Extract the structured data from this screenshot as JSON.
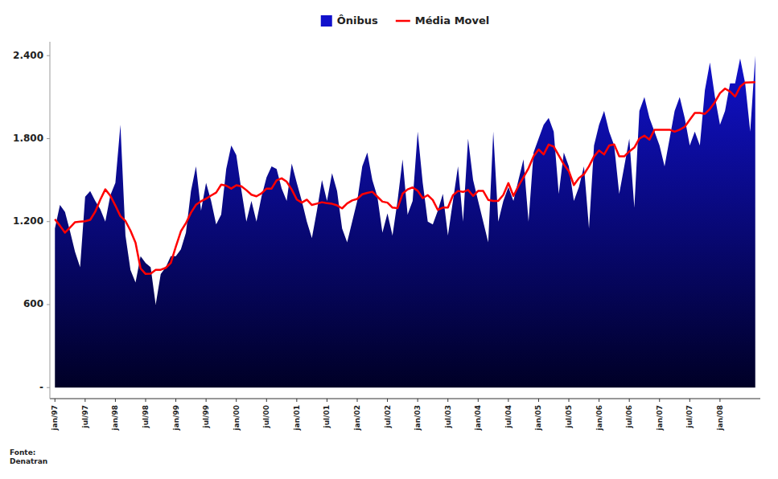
{
  "chart_data": {
    "type": "area",
    "categories": [
      "jan/97",
      null,
      null,
      null,
      null,
      null,
      "jul/97",
      null,
      null,
      null,
      null,
      null,
      "jan/98",
      null,
      null,
      null,
      null,
      null,
      "jul/98",
      null,
      null,
      null,
      null,
      null,
      "jan/99",
      null,
      null,
      null,
      null,
      null,
      "jul/99",
      null,
      null,
      null,
      null,
      null,
      "jan/00",
      null,
      null,
      null,
      null,
      null,
      "jul/00",
      null,
      null,
      null,
      null,
      null,
      "jan/01",
      null,
      null,
      null,
      null,
      null,
      "jul/01",
      null,
      null,
      null,
      null,
      null,
      "jan/02",
      null,
      null,
      null,
      null,
      null,
      "jul/02",
      null,
      null,
      null,
      null,
      null,
      "jan/03",
      null,
      null,
      null,
      null,
      null,
      "jul/03",
      null,
      null,
      null,
      null,
      null,
      "jan/04",
      null,
      null,
      null,
      null,
      null,
      "jul/04",
      null,
      null,
      null,
      null,
      null,
      "jan/05",
      null,
      null,
      null,
      null,
      null,
      "jul/05",
      null,
      null,
      null,
      null,
      null,
      "jan/06",
      null,
      null,
      null,
      null,
      null,
      "jul/06",
      null,
      null,
      null,
      null,
      null,
      "jan/07",
      null,
      null,
      null,
      null,
      null,
      "jul/07",
      null,
      null,
      null,
      null,
      null,
      "jan/08",
      null,
      null,
      null,
      null,
      null,
      null,
      null
    ],
    "series": [
      {
        "name": "Ônibus",
        "type": "area",
        "color": "#1111cc",
        "values": [
          1150,
          1320,
          1270,
          1130,
          980,
          870,
          1380,
          1420,
          1350,
          1290,
          1200,
          1390,
          1480,
          1900,
          1100,
          850,
          760,
          950,
          900,
          870,
          600,
          820,
          870,
          950,
          950,
          1000,
          1120,
          1420,
          1600,
          1280,
          1480,
          1350,
          1180,
          1250,
          1580,
          1750,
          1680,
          1430,
          1200,
          1350,
          1200,
          1380,
          1520,
          1600,
          1580,
          1440,
          1350,
          1620,
          1480,
          1350,
          1200,
          1080,
          1280,
          1500,
          1350,
          1550,
          1420,
          1150,
          1050,
          1200,
          1350,
          1600,
          1700,
          1500,
          1380,
          1120,
          1260,
          1100,
          1350,
          1650,
          1250,
          1350,
          1850,
          1480,
          1200,
          1180,
          1280,
          1400,
          1100,
          1350,
          1600,
          1200,
          1800,
          1500,
          1350,
          1200,
          1050,
          1850,
          1200,
          1350,
          1450,
          1350,
          1500,
          1650,
          1200,
          1700,
          1800,
          1900,
          1950,
          1850,
          1400,
          1700,
          1600,
          1350,
          1450,
          1600,
          1150,
          1750,
          1900,
          2000,
          1850,
          1750,
          1400,
          1600,
          1800,
          1300,
          2000,
          2100,
          1950,
          1850,
          1750,
          1600,
          1800,
          2000,
          2100,
          1950,
          1750,
          1850,
          1750,
          2150,
          2350,
          2100,
          1900,
          2000,
          2200,
          2200,
          2380,
          2200,
          1850,
          2400
        ]
      },
      {
        "name": "Média Movel",
        "type": "line",
        "color": "#ff0000",
        "values": [
          1217.5,
          1170,
          1120,
          1157.142857,
          1195.714286,
          1200,
          1202.857143,
          1212.857143,
          1271.428571,
          1358.571429,
          1432.857143,
          1387.142857,
          1315.714286,
          1240,
          1204.285714,
          1134.285714,
          1047.142857,
          861.428571,
          821.428571,
          824.285714,
          851.428571,
          851.428571,
          865.714286,
          901.428571,
          1018.571429,
          1130,
          1188.571429,
          1264.285714,
          1321.428571,
          1347.142857,
          1365.714286,
          1388.571429,
          1410,
          1467.142857,
          1460,
          1438.571429,
          1462.857143,
          1455.714286,
          1427.142857,
          1394.285714,
          1382.857143,
          1404.285714,
          1438.571429,
          1438.571429,
          1498.571429,
          1512.857143,
          1488.571429,
          1431.428571,
          1360,
          1337.142857,
          1358.571429,
          1320,
          1330,
          1340,
          1332.857143,
          1328.571429,
          1317.142857,
          1295.714286,
          1331.428571,
          1352.857143,
          1364.285714,
          1397.142857,
          1407.142857,
          1415.714286,
          1380,
          1344.285714,
          1337.142857,
          1301.428571,
          1297.142857,
          1401.428571,
          1432.857143,
          1447.142857,
          1422.857143,
          1370,
          1391.428571,
          1355.714286,
          1284.285714,
          1301.428571,
          1301.428571,
          1390,
          1421.428571,
          1414.285714,
          1428.571429,
          1385.714286,
          1421.428571,
          1421.428571,
          1357.142857,
          1350,
          1350,
          1392.857143,
          1478.571429,
          1385.714286,
          1457.142857,
          1521.428571,
          1585.714286,
          1671.428571,
          1721.428571,
          1685.714286,
          1757.142857,
          1742.857143,
          1678.571429,
          1614.285714,
          1564.285714,
          1464.285714,
          1514.285714,
          1542.857143,
          1600,
          1671.428571,
          1714.285714,
          1685.714286,
          1750,
          1757.142857,
          1671.428571,
          1671.428571,
          1707.142857,
          1735.714286,
          1800,
          1821.428571,
          1792.857143,
          1864.285714,
          1864.285714,
          1864.285714,
          1864.285714,
          1850,
          1864.285714,
          1885.714286,
          1935.714286,
          1985.714286,
          1985.714286,
          1978.571429,
          2014.285714,
          2064.285714,
          2128.571429,
          2161.428571,
          2140,
          2104.285714,
          2175.714286,
          2205,
          2206,
          2207.5
        ]
      }
    ],
    "ylim": [
      -80,
      2500
    ],
    "yticks": [
      {
        "value": 0,
        "label": "-"
      },
      600,
      {
        "value": 1200,
        "label": "1.200"
      },
      {
        "value": 1800,
        "label": "1.800"
      },
      {
        "value": 2400,
        "label": "2.400"
      }
    ],
    "grid": false,
    "legend": "top",
    "annotations": [
      "Fonte:\nDenatran"
    ]
  }
}
